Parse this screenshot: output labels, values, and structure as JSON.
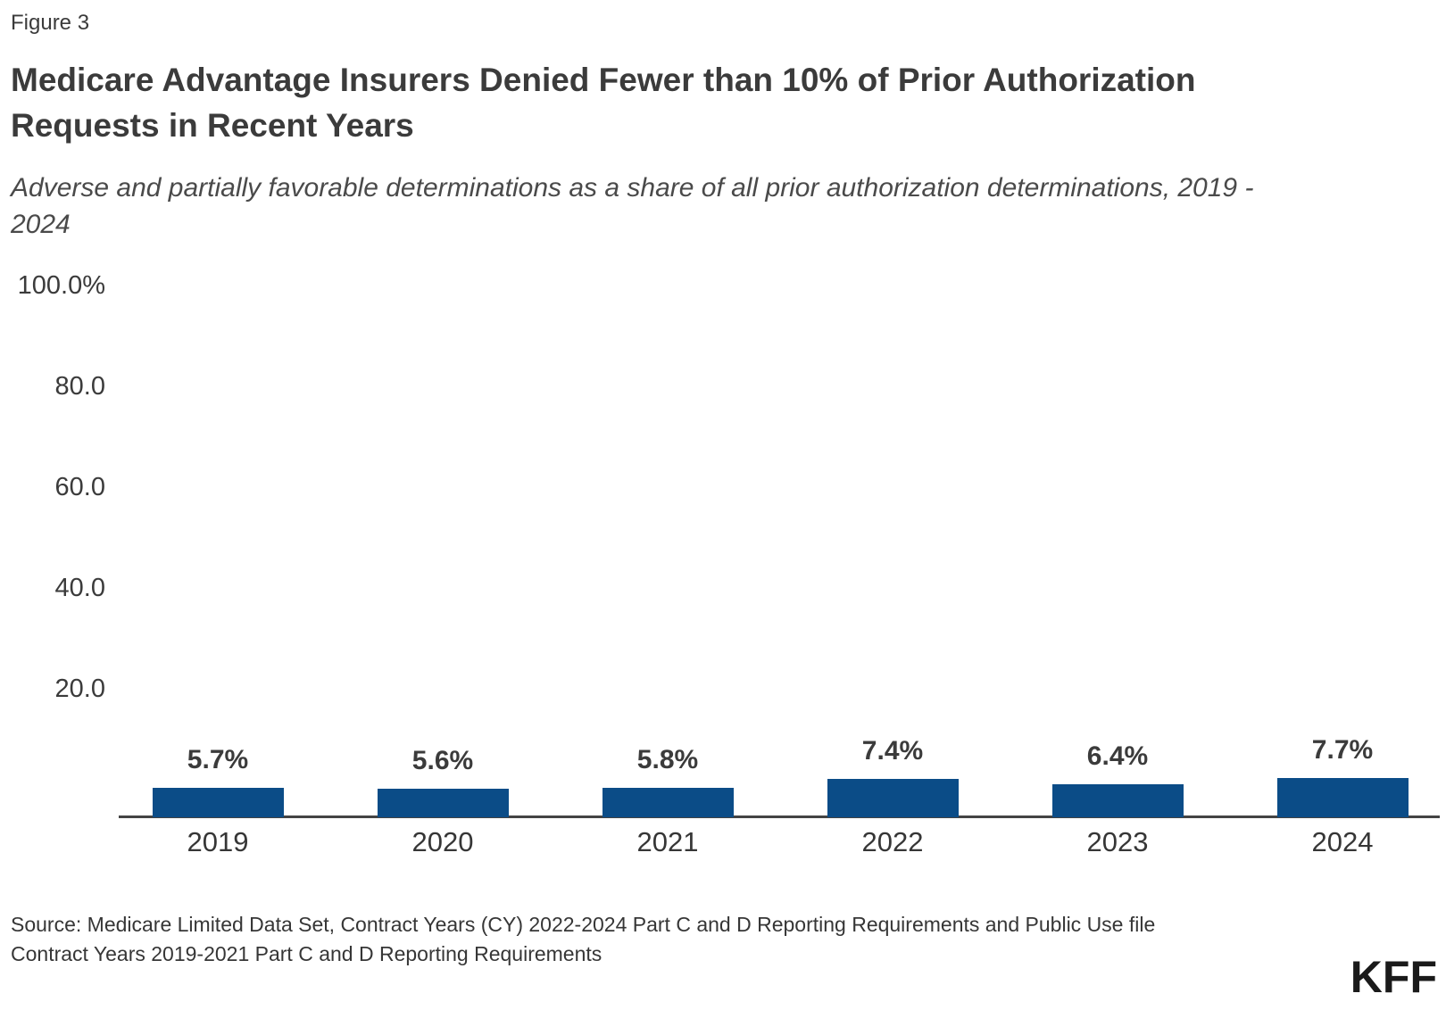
{
  "page": {
    "figure_label": "Figure 3",
    "title_line1": "Medicare Advantage Insurers Denied Fewer than 10% of Prior Authorization",
    "title_line2": "Requests in Recent Years",
    "subtitle_line1": "Adverse and partially favorable determinations as a share of all prior authorization determinations, 2019 -",
    "subtitle_line2": "2024",
    "source_line1": "Source: Medicare Limited Data Set, Contract Years (CY) 2022-2024 Part C and D Reporting Requirements and Public Use file",
    "source_line2": "Contract Years 2019-2021 Part C and D Reporting Requirements",
    "logo_text": "KFF"
  },
  "chart_data": {
    "type": "bar",
    "title": "Medicare Advantage Insurers Denied Fewer than 10% of Prior Authorization Requests in Recent Years",
    "subtitle": "Adverse and partially favorable determinations as a share of all prior authorization determinations, 2019 - 2024",
    "categories": [
      "2019",
      "2020",
      "2021",
      "2022",
      "2023",
      "2024"
    ],
    "values": [
      5.7,
      5.6,
      5.8,
      7.4,
      6.4,
      7.7
    ],
    "value_labels": [
      "5.7%",
      "5.6%",
      "5.8%",
      "7.4%",
      "6.4%",
      "7.7%"
    ],
    "xlabel": "",
    "ylabel": "",
    "ylim": [
      0,
      100
    ],
    "yticks": [
      {
        "value": 100,
        "label": "100.0%"
      },
      {
        "value": 80,
        "label": "80.0"
      },
      {
        "value": 60,
        "label": "60.0"
      },
      {
        "value": 40,
        "label": "40.0"
      },
      {
        "value": 20,
        "label": "20.0"
      }
    ],
    "grid": false,
    "legend_position": "none",
    "colors": {
      "bar": "#0B4C87",
      "axis_line": "#444444",
      "tick_text": "#3B3B3B",
      "value_label_text": "#3B3B3B",
      "category_text": "#363636",
      "title_text": "#3B3B3B",
      "subtitle_text": "#4A4A4A",
      "source_text": "#363636",
      "logo_text": "#1A1A1A"
    }
  }
}
